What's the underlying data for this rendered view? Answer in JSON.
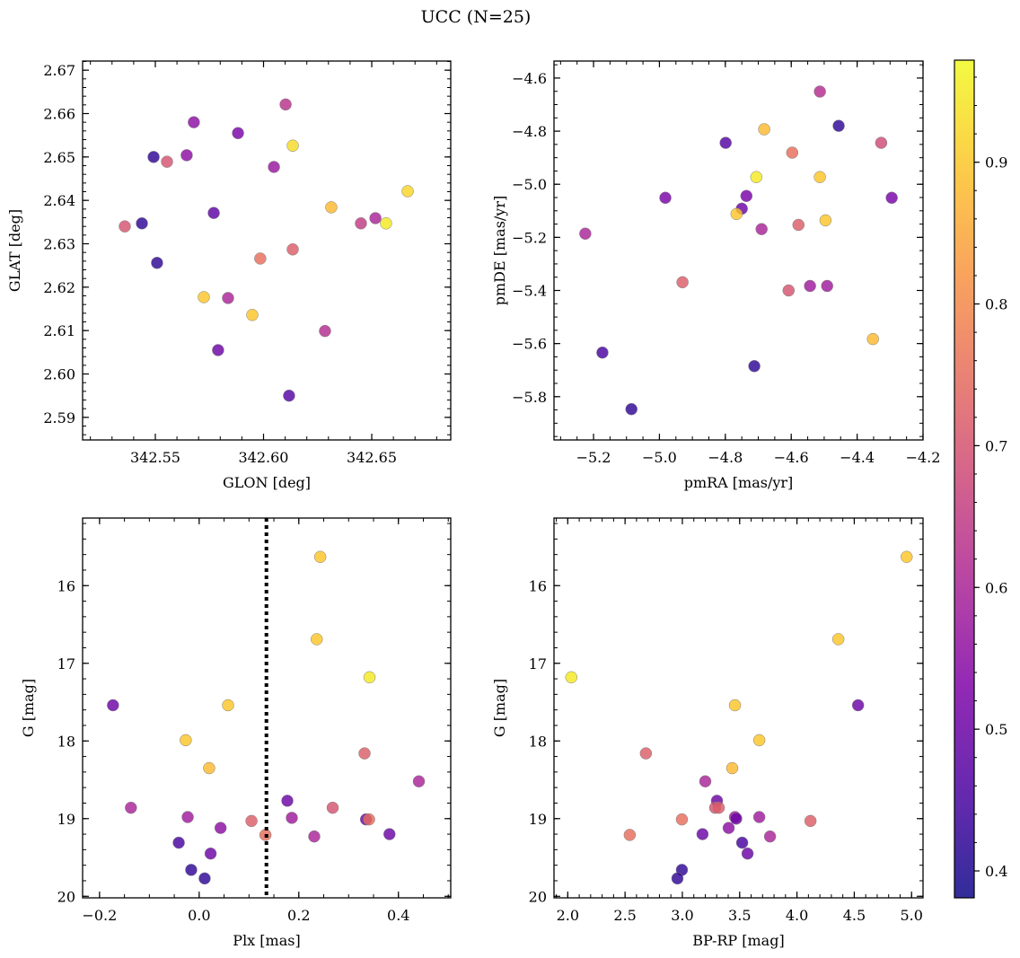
{
  "figure": {
    "title": "UCC (N=25)"
  },
  "chart_data": [
    {
      "type": "scatter",
      "panel": "top-left",
      "xlabel": "GLON [deg]",
      "ylabel": "GLAT [deg]",
      "xlim": [
        342.5164,
        342.6865
      ],
      "ylim": [
        2.5848,
        2.6721
      ],
      "xticks": [
        342.55,
        342.6,
        342.65
      ],
      "xticklabels": [
        "342.55",
        "342.60",
        "342.65"
      ],
      "xminor": 0.01,
      "yticks": [
        2.59,
        2.6,
        2.61,
        2.62,
        2.63,
        2.64,
        2.65,
        2.66,
        2.67
      ],
      "yticklabels": [
        "2.59",
        "2.60",
        "2.61",
        "2.62",
        "2.63",
        "2.64",
        "2.65",
        "2.66",
        "2.67"
      ],
      "yminor": 0.002,
      "x": [
        342.6102,
        342.5678,
        342.5882,
        342.5492,
        342.5554,
        342.5645,
        342.6135,
        342.6048,
        342.6666,
        342.6313,
        342.577,
        342.5438,
        342.5359,
        342.6566,
        342.6517,
        342.645,
        342.5985,
        342.6135,
        342.5508,
        342.5724,
        342.5836,
        342.5948,
        342.6284,
        342.579,
        342.6118
      ],
      "y": [
        2.6621,
        2.658,
        2.6555,
        2.65,
        2.6489,
        2.6504,
        2.6526,
        2.6477,
        2.6421,
        2.6384,
        2.6371,
        2.6347,
        2.634,
        2.6347,
        2.6359,
        2.6347,
        2.6266,
        2.6287,
        2.6256,
        2.6177,
        2.6175,
        2.6136,
        2.6099,
        2.6055,
        2.595
      ],
      "c": [
        0.63,
        0.55,
        0.52,
        0.42,
        0.7,
        0.55,
        0.93,
        0.57,
        0.92,
        0.88,
        0.48,
        0.42,
        0.7,
        0.95,
        0.6,
        0.65,
        0.75,
        0.72,
        0.42,
        0.9,
        0.6,
        0.9,
        0.62,
        0.5,
        0.47
      ]
    },
    {
      "type": "scatter",
      "panel": "top-right",
      "xlabel": "pmRA [mas/yr]",
      "ylabel": "pmDE [mas/yr]",
      "xlim": [
        -5.32,
        -4.2
      ],
      "ylim": [
        -5.963,
        -4.536
      ],
      "xticks": [
        -5.2,
        -5.0,
        -4.8,
        -4.6,
        -4.4,
        -4.2
      ],
      "xticklabels": [
        "−5.2",
        "−5.0",
        "−4.8",
        "−4.6",
        "−4.4",
        "−4.2"
      ],
      "xminor": 0.05,
      "yticks": [
        -5.8,
        -5.6,
        -5.4,
        -5.2,
        -5.0,
        -4.8,
        -4.6
      ],
      "yticklabels": [
        "−5.8",
        "−5.6",
        "−5.4",
        "−5.2",
        "−5.0",
        "−4.8",
        "−4.6"
      ],
      "yminor": 0.05,
      "x": [
        -4.513,
        -4.456,
        -4.327,
        -4.799,
        -4.682,
        -4.597,
        -4.706,
        -4.513,
        -4.982,
        -4.736,
        -4.295,
        -4.75,
        -4.766,
        -4.69,
        -4.578,
        -4.496,
        -5.225,
        -4.93,
        -4.608,
        -4.543,
        -4.491,
        -4.352,
        -5.173,
        -4.712,
        -5.085
      ],
      "y": [
        -4.651,
        -4.78,
        -4.844,
        -4.844,
        -4.793,
        -4.881,
        -4.973,
        -4.973,
        -5.051,
        -5.044,
        -5.051,
        -5.092,
        -5.112,
        -5.169,
        -5.153,
        -5.136,
        -5.186,
        -5.369,
        -5.4,
        -5.383,
        -5.383,
        -5.583,
        -5.634,
        -5.685,
        -5.847
      ],
      "c": [
        0.62,
        0.42,
        0.68,
        0.47,
        0.88,
        0.75,
        0.95,
        0.9,
        0.52,
        0.52,
        0.52,
        0.5,
        0.9,
        0.6,
        0.72,
        0.9,
        0.6,
        0.72,
        0.7,
        0.58,
        0.58,
        0.88,
        0.45,
        0.42,
        0.42
      ]
    },
    {
      "type": "scatter",
      "panel": "bottom-left",
      "xlabel": "Plx [mas]",
      "ylabel": "G [mag]",
      "xlim": [
        -0.234,
        0.505
      ],
      "ylim": [
        20.02,
        15.13
      ],
      "xticks": [
        -0.2,
        0.0,
        0.2,
        0.4
      ],
      "xticklabels": [
        "−0.2",
        "0.0",
        "0.2",
        "0.4"
      ],
      "xminor": 0.05,
      "yticks": [
        16,
        17,
        18,
        19,
        20
      ],
      "yticklabels": [
        "16",
        "17",
        "18",
        "19",
        "20"
      ],
      "yminor": 0.2,
      "vline": {
        "x": 0.135,
        "style": "dotted"
      },
      "x": [
        0.243,
        0.236,
        0.342,
        -0.173,
        0.058,
        -0.027,
        0.02,
        0.332,
        0.441,
        -0.137,
        0.177,
        0.268,
        -0.023,
        0.186,
        0.105,
        0.335,
        0.341,
        0.043,
        0.133,
        0.231,
        0.382,
        -0.041,
        0.023,
        -0.016,
        0.011
      ],
      "y": [
        15.63,
        16.69,
        17.18,
        17.54,
        17.54,
        17.99,
        18.35,
        18.16,
        18.52,
        18.86,
        18.77,
        18.86,
        18.98,
        18.99,
        19.03,
        19.01,
        19.01,
        19.12,
        19.21,
        19.23,
        19.2,
        19.31,
        19.45,
        19.66,
        19.77
      ],
      "c": [
        0.9,
        0.9,
        0.95,
        0.5,
        0.9,
        0.9,
        0.88,
        0.72,
        0.6,
        0.6,
        0.5,
        0.7,
        0.58,
        0.58,
        0.72,
        0.5,
        0.75,
        0.55,
        0.75,
        0.6,
        0.5,
        0.45,
        0.5,
        0.42,
        0.42
      ]
    },
    {
      "type": "scatter",
      "panel": "bottom-right",
      "xlabel": "BP-RP [mag]",
      "ylabel": "G [mag]",
      "xlim": [
        1.88,
        5.1
      ],
      "ylim": [
        20.02,
        15.13
      ],
      "xticks": [
        2.0,
        2.5,
        3.0,
        3.5,
        4.0,
        4.5,
        5.0
      ],
      "xticklabels": [
        "2.0",
        "2.5",
        "3.0",
        "3.5",
        "4.0",
        "4.5",
        "5.0"
      ],
      "xminor": 0.1,
      "yticks": [
        16,
        17,
        18,
        19,
        20
      ],
      "yticklabels": [
        "16",
        "17",
        "18",
        "19",
        "20"
      ],
      "yminor": 0.2,
      "x": [
        4.957,
        4.361,
        2.031,
        4.533,
        3.459,
        3.671,
        2.682,
        3.435,
        3.2,
        3.302,
        3.286,
        3.318,
        3.459,
        3.671,
        2.996,
        4.118,
        3.404,
        2.541,
        3.176,
        3.765,
        3.522,
        3.569,
        2.996,
        2.957,
        3.47
      ],
      "y": [
        15.63,
        16.69,
        17.18,
        17.54,
        17.54,
        17.99,
        18.16,
        18.35,
        18.52,
        18.77,
        18.86,
        18.86,
        18.98,
        18.98,
        19.01,
        19.03,
        19.12,
        19.21,
        19.2,
        19.23,
        19.31,
        19.45,
        19.66,
        19.77,
        19.0
      ],
      "c": [
        0.9,
        0.9,
        0.95,
        0.5,
        0.9,
        0.9,
        0.72,
        0.88,
        0.6,
        0.5,
        0.7,
        0.72,
        0.58,
        0.58,
        0.75,
        0.72,
        0.55,
        0.75,
        0.5,
        0.6,
        0.45,
        0.5,
        0.42,
        0.42,
        0.5
      ]
    }
  ],
  "colorbar": {
    "cmap": "plasma",
    "range": [
      0.381,
      0.972
    ],
    "ticks": [
      0.4,
      0.5,
      0.6,
      0.7,
      0.8,
      0.9
    ],
    "ticklabels": [
      "0.4",
      "0.5",
      "0.6",
      "0.7",
      "0.8",
      "0.9"
    ],
    "minor": 0.02
  },
  "colors": {
    "marker_edge": "#7f7f7f",
    "axes": "#000000"
  }
}
